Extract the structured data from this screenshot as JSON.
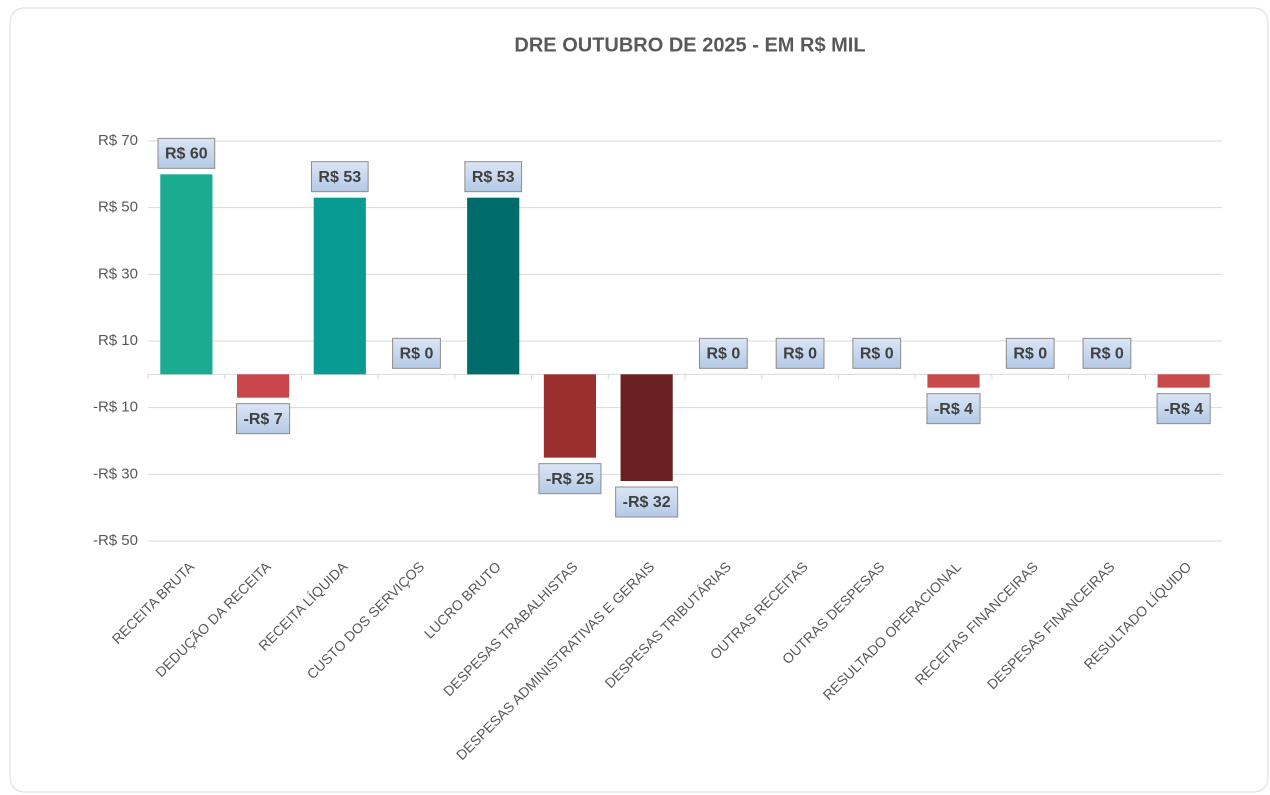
{
  "chart_data": {
    "type": "bar",
    "title": "DRE OUTUBRO DE 2025 - EM R$ MIL",
    "categories": [
      "RECEITA BRUTA",
      "DEDUÇÃO DA RECEITA",
      "RECEITA LÍQUIDA",
      "CUSTO DOS SERVIÇOS",
      "LUCRO BRUTO",
      "DESPESAS TRABALHISTAS",
      "DESPESAS ADMINISTRATIVAS E GERAIS",
      "DESPESAS TRIBUTÁRIAS",
      "OUTRAS RECEITAS",
      "OUTRAS DESPESAS",
      "RESULTADO OPERACIONAL",
      "RECEITAS FINANCEIRAS",
      "DESPESAS FINANCEIRAS",
      "RESULTADO LÍQUIDO"
    ],
    "values": [
      60,
      -7,
      53,
      0,
      53,
      -25,
      -32,
      0,
      0,
      0,
      -4,
      0,
      0,
      -4
    ],
    "value_labels": [
      "R$ 60",
      "-R$ 7",
      "R$ 53",
      "R$ 0",
      "R$ 53",
      "-R$ 25",
      "-R$ 32",
      "R$ 0",
      "R$ 0",
      "R$ 0",
      "-R$ 4",
      "R$ 0",
      "R$ 0",
      "-R$ 4"
    ],
    "colors": [
      "#1aab92",
      "#c9474a",
      "#079b94",
      "#079b94",
      "#006b6b",
      "#9b2f2e",
      "#6a2020",
      "#c9474a",
      "#1aab92",
      "#c9474a",
      "#c94a4b",
      "#1aab92",
      "#c9474a",
      "#c94a4b"
    ],
    "ylim": [
      -50,
      70
    ],
    "yticks": [
      {
        "value": 70,
        "label": "R$ 70"
      },
      {
        "value": 50,
        "label": "R$ 50"
      },
      {
        "value": 30,
        "label": "R$ 30"
      },
      {
        "value": 10,
        "label": "R$ 10"
      },
      {
        "value": -10,
        "label": "-R$ 10"
      },
      {
        "value": -30,
        "label": "-R$ 30"
      },
      {
        "value": -50,
        "label": "-R$ 50"
      }
    ],
    "grid": true
  }
}
